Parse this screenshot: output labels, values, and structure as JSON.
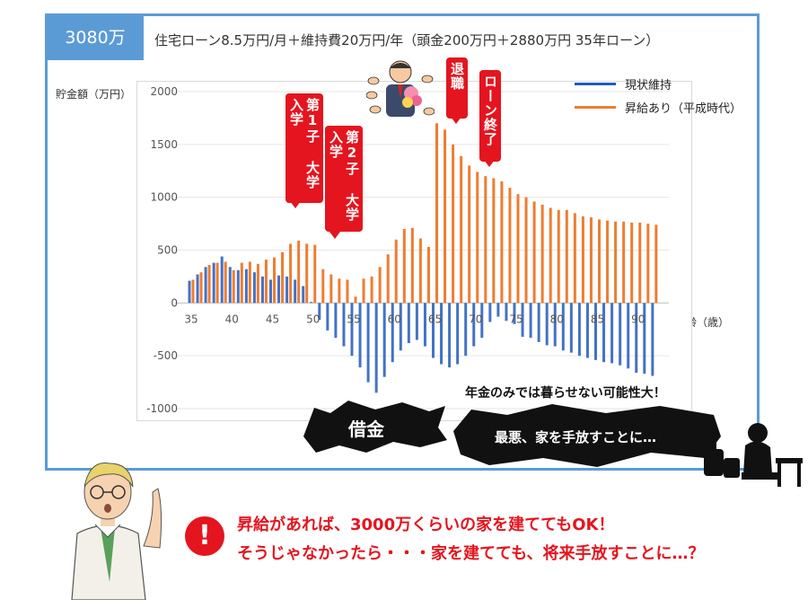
{
  "header": {
    "tag": "3080万",
    "description": "住宅ローン8.5万円/月＋維持費20万円/年（頭金200万円＋2880万円 35年ローン）"
  },
  "chart_data": {
    "type": "bar",
    "ylabel": "貯金額（万円）",
    "xlabel": "年齢（歳）",
    "ylim": [
      -1000,
      2000
    ],
    "yticks": [
      2000,
      1500,
      1000,
      500,
      0,
      -500,
      -1000
    ],
    "xticks": [
      35,
      40,
      45,
      50,
      55,
      60,
      65,
      70,
      75,
      80,
      85,
      90
    ],
    "legend_position": "top-right",
    "x": [
      35,
      36,
      37,
      38,
      39,
      40,
      41,
      42,
      43,
      44,
      45,
      46,
      47,
      48,
      49,
      50,
      51,
      52,
      53,
      54,
      55,
      56,
      57,
      58,
      59,
      60,
      61,
      62,
      63,
      64,
      65,
      66,
      67,
      68,
      69,
      70,
      71,
      72,
      73,
      74,
      75,
      76,
      77,
      78,
      79,
      80,
      81,
      82,
      83,
      84,
      85,
      86,
      87,
      88,
      89,
      90,
      91,
      92
    ],
    "series": [
      {
        "name": "現状維持",
        "color": "#4472c4",
        "values": [
          210,
          270,
          340,
          380,
          440,
          340,
          310,
          320,
          290,
          250,
          220,
          260,
          250,
          220,
          160,
          10,
          -160,
          -260,
          -330,
          -410,
          -500,
          -610,
          -750,
          -850,
          -700,
          -560,
          -450,
          -380,
          -350,
          -410,
          -520,
          -580,
          -610,
          -580,
          -500,
          -410,
          -330,
          -180,
          -130,
          -170,
          -200,
          -320,
          -330,
          -370,
          -400,
          -410,
          -450,
          -470,
          -500,
          -520,
          -540,
          -560,
          -570,
          -590,
          -620,
          -660,
          -670,
          -690
        ]
      },
      {
        "name": "昇給あり（平成時代）",
        "color": "#ed7d31",
        "values": [
          220,
          290,
          360,
          380,
          390,
          310,
          380,
          390,
          370,
          410,
          430,
          480,
          560,
          590,
          560,
          550,
          320,
          270,
          230,
          220,
          60,
          230,
          250,
          340,
          460,
          600,
          700,
          710,
          610,
          530,
          1700,
          1640,
          1500,
          1390,
          1300,
          1240,
          1200,
          1180,
          1150,
          1090,
          1030,
          1000,
          960,
          930,
          900,
          880,
          880,
          850,
          820,
          810,
          790,
          780,
          770,
          770,
          760,
          760,
          750,
          740
        ]
      }
    ]
  },
  "annotations": {
    "child1": "第1子 大学入学",
    "child2": "第2子 大学入学",
    "retire": "退職",
    "loan_end": "ローン終了",
    "borrow": "借金",
    "worst": "最悪、家を手放すことに…",
    "warning": "年金のみでは暮らせない可能性大！"
  },
  "bottom": {
    "line1": "昇給があれば、3000万くらいの家を建ててもOK！",
    "line2": "そうじゃなかったら・・・家を建てても、将来手放すことに…？"
  }
}
